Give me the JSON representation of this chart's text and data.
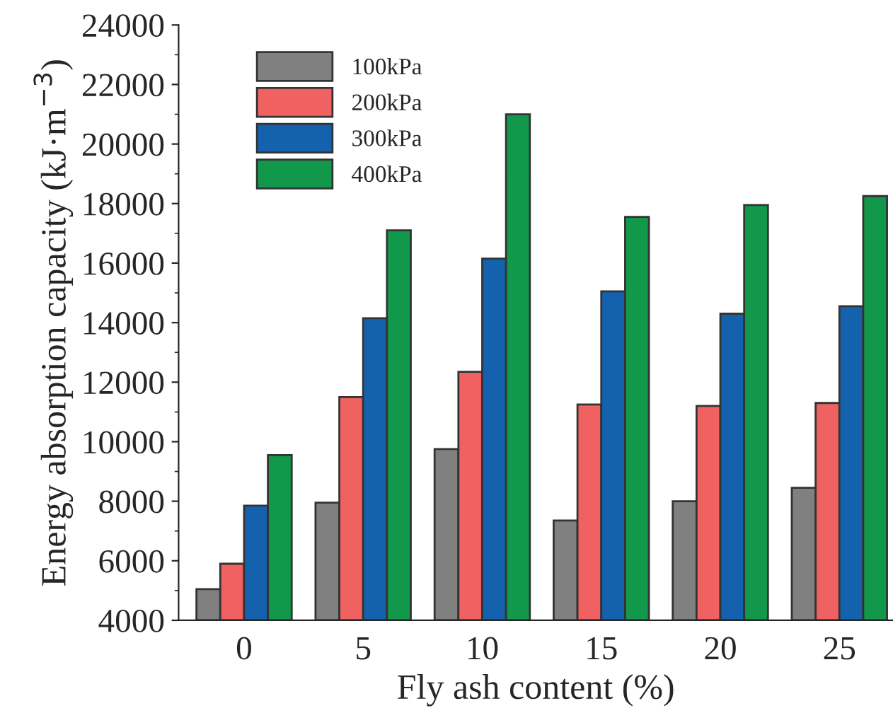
{
  "chart_data": {
    "type": "bar",
    "xlabel": "Fly ash content (%)",
    "ylabel": "Energy absorption capacity (kJ·m$^{−3}$)",
    "categories": [
      "0",
      "5",
      "10",
      "15",
      "20",
      "25"
    ],
    "series": [
      {
        "name": "100kPa",
        "color": "#808080",
        "values": [
          5050,
          7950,
          9750,
          7350,
          8000,
          8450
        ]
      },
      {
        "name": "200kPa",
        "color": "#f06262",
        "values": [
          5900,
          11500,
          12350,
          11250,
          11200,
          11300
        ]
      },
      {
        "name": "300kPa",
        "color": "#1462ae",
        "values": [
          7850,
          14150,
          16150,
          15050,
          14300,
          14550
        ]
      },
      {
        "name": "400kPa",
        "color": "#12984a",
        "values": [
          9550,
          17100,
          21000,
          17550,
          17950,
          18250
        ]
      }
    ],
    "ylim": [
      4000,
      24000
    ],
    "yticks": [
      4000,
      6000,
      8000,
      10000,
      12000,
      14000,
      16000,
      18000,
      20000,
      22000,
      24000
    ],
    "grid": false,
    "legend": "top left"
  }
}
